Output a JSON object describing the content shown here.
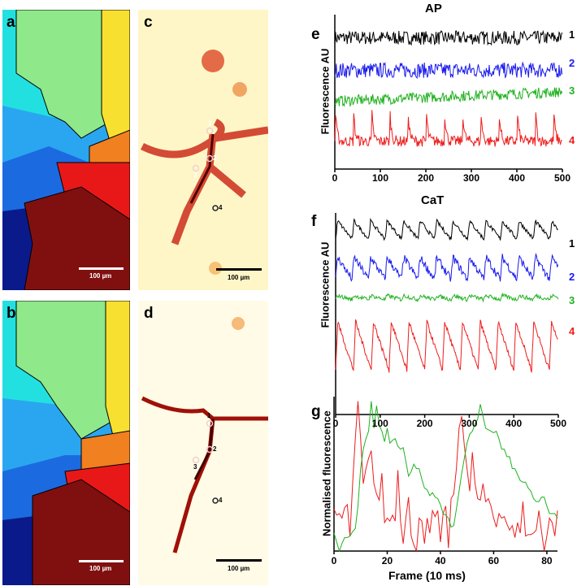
{
  "panels": {
    "a": "a",
    "b": "b",
    "c": "c",
    "d": "d",
    "e": "e",
    "f": "f",
    "g": "g"
  },
  "scale_bar": "100 µm",
  "roi_labels": [
    "1",
    "2",
    "3",
    "4"
  ],
  "chart_data": [
    {
      "type": "line",
      "panel": "e",
      "title": "AP",
      "ylabel": "Fluorescence AU",
      "xlabel": "",
      "xlim": [
        0,
        500
      ],
      "xticks": [
        "0",
        "100",
        "200",
        "300",
        "400",
        "500"
      ],
      "ylim": [
        0,
        100
      ],
      "series": [
        {
          "name": "1",
          "color": "#000000",
          "offset": 85,
          "amplitude": 0,
          "period": 0,
          "noise": 9
        },
        {
          "name": "2",
          "color": "#1a1aee",
          "offset": 64,
          "amplitude": 0,
          "period": 0,
          "noise": 10
        },
        {
          "name": "3",
          "color": "#1fb21f",
          "offset": 44,
          "amplitude": 0,
          "period": 0,
          "noise": 7,
          "drift": 6
        },
        {
          "name": "4",
          "color": "#ee1c1c",
          "offset": 18,
          "amplitude": 28,
          "period": 40,
          "noise": 7,
          "shape": "spike"
        }
      ]
    },
    {
      "type": "line",
      "panel": "f",
      "title": "CaT",
      "ylabel": "Fluorescence AU",
      "xlabel": "",
      "xlim": [
        0,
        500
      ],
      "xticks": [
        "0",
        "100",
        "200",
        "300",
        "400",
        "500"
      ],
      "ylim": [
        0,
        100
      ],
      "series": [
        {
          "name": "1",
          "color": "#000000",
          "offset": 87,
          "amplitude": 9,
          "period": 37,
          "noise": 2,
          "shape": "saw"
        },
        {
          "name": "2",
          "color": "#1a1aee",
          "offset": 67,
          "amplitude": 11,
          "period": 37,
          "noise": 4,
          "shape": "saw"
        },
        {
          "name": "3",
          "color": "#1fb21f",
          "offset": 57,
          "amplitude": 2,
          "period": 37,
          "noise": 2,
          "shape": "saw"
        },
        {
          "name": "4",
          "color": "#ee1c1c",
          "offset": 22,
          "amplitude": 24,
          "period": 40,
          "noise": 2.5,
          "shape": "saw"
        }
      ]
    },
    {
      "type": "line",
      "panel": "g",
      "title": "",
      "ylabel": "Normalised fluorescence",
      "xlabel": "Frame (10 ms)",
      "xlim": [
        0,
        84
      ],
      "xticks": [
        "0",
        "20",
        "40",
        "60",
        "80"
      ],
      "ylim": [
        0,
        1
      ],
      "series": [
        {
          "name": "red",
          "color": "#ee1c1c",
          "values": [
            0.28,
            0.24,
            0.25,
            0.22,
            0.29,
            0.31,
            0.1,
            0.45,
            0.75,
            1.0,
            0.75,
            0.45,
            0.55,
            0.62,
            0.67,
            0.45,
            0.38,
            0.34,
            0.52,
            0.19,
            0.22,
            0.2,
            0.24,
            0.2,
            0.54,
            0.2,
            0.05,
            0.22,
            0.36,
            0.1,
            0.04,
            0.0,
            0.22,
            0.2,
            0.05,
            0.22,
            0.12,
            0.27,
            0.23,
            0.27,
            0.06,
            0.25,
            0.3,
            0.02,
            0.35,
            0.38,
            0.55,
            0.82,
            0.9,
            0.7,
            0.55,
            0.4,
            0.66,
            0.45,
            0.35,
            0.34,
            0.45,
            0.33,
            0.35,
            0.3,
            0.22,
            0.16,
            0.25,
            0.22,
            0.23,
            0.18,
            0.14,
            0.17,
            0.09,
            0.19,
            0.12,
            0.33,
            0.1,
            0.11,
            0.11,
            0.12,
            0.14,
            0.27,
            0.13,
            0.0,
            0.1,
            0.22,
            0.19,
            0.1,
            0.27
          ]
        },
        {
          "name": "green",
          "color": "#1fb21f",
          "values": [
            0.12,
            0.06,
            0.0,
            0.05,
            0.09,
            0.09,
            0.1,
            0.13,
            0.15,
            0.3,
            0.55,
            0.68,
            0.75,
            0.8,
            1.0,
            0.82,
            0.97,
            0.84,
            0.8,
            0.73,
            0.82,
            0.72,
            0.74,
            0.75,
            0.7,
            0.68,
            0.69,
            0.6,
            0.5,
            0.53,
            0.58,
            0.55,
            0.55,
            0.48,
            0.42,
            0.41,
            0.37,
            0.39,
            0.36,
            0.35,
            0.31,
            0.25,
            0.24,
            0.22,
            0.16,
            0.17,
            0.28,
            0.4,
            0.52,
            0.62,
            0.72,
            0.78,
            0.8,
            0.85,
            0.88,
            0.98,
            0.9,
            0.82,
            0.81,
            0.8,
            0.79,
            0.8,
            0.75,
            0.68,
            0.68,
            0.63,
            0.63,
            0.55,
            0.55,
            0.51,
            0.47,
            0.46,
            0.46,
            0.42,
            0.4,
            0.35,
            0.33,
            0.33,
            0.36,
            0.36,
            0.3,
            0.25,
            0.25,
            0.25,
            0.22
          ]
        }
      ]
    }
  ]
}
